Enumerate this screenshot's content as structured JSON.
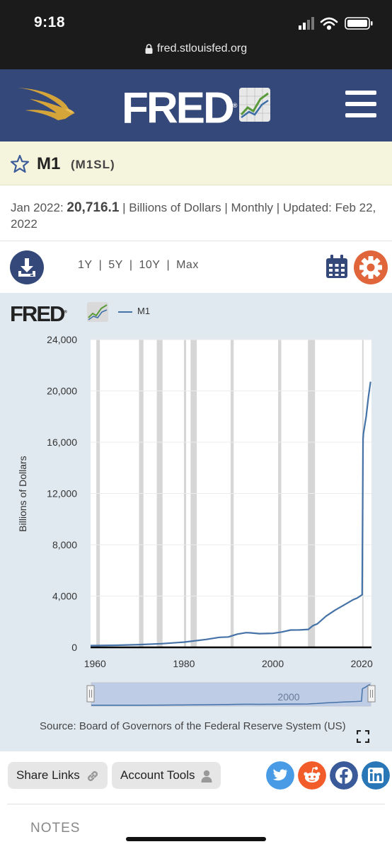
{
  "status": {
    "time": "9:18"
  },
  "browser": {
    "url": "fred.stlouisfed.org"
  },
  "header": {
    "brand": "FRED",
    "reg": "®"
  },
  "series": {
    "title": "M1",
    "id": "(M1SL)",
    "date_label": "Jan 2022:",
    "value": "20,716.1",
    "units": "| Billions of Dollars | Monthly | Updated:",
    "updated": "Feb 22, 2022"
  },
  "ranges": [
    "1Y",
    "5Y",
    "10Y",
    "Max"
  ],
  "graph": {
    "brand": "FRED",
    "reg": "®",
    "legend": "M1",
    "navigator_label": "2000",
    "source": "Source: Board of Governors of the Federal Reserve System (US)"
  },
  "bottom": {
    "share_label": "Share Links",
    "account_label": "Account Tools",
    "notes_label": "NOTES"
  },
  "colors": {
    "header_bg": "#34497a",
    "series_line": "#4572a7",
    "recession_bar": "#c8c8c8",
    "accent_orange": "#e1653a",
    "twitter": "#4a9be6",
    "reddit": "#f25c2b",
    "facebook": "#3b5a9a",
    "linkedin": "#2977b6"
  },
  "chart_data": {
    "type": "line",
    "ylabel": "Billions of Dollars",
    "xlabel": "",
    "ylim": [
      0,
      24000
    ],
    "xlim": [
      1959.0,
      2022.2
    ],
    "yticks": [
      0,
      4000,
      8000,
      12000,
      16000,
      20000,
      24000
    ],
    "ytick_labels": [
      "0",
      "4,000",
      "8,000",
      "12,000",
      "16,000",
      "20,000",
      "24,000"
    ],
    "xticks": [
      1960,
      1980,
      2000,
      2020
    ],
    "xtick_labels": [
      "1960",
      "1980",
      "2000",
      "2020"
    ],
    "recessions": [
      [
        1960.3,
        1961.1
      ],
      [
        1969.9,
        1970.9
      ],
      [
        1973.9,
        1975.2
      ],
      [
        1980.0,
        1980.5
      ],
      [
        1981.5,
        1982.9
      ],
      [
        1990.5,
        1991.2
      ],
      [
        2001.2,
        2001.9
      ],
      [
        2007.9,
        2009.5
      ],
      [
        2020.1,
        2020.3
      ]
    ],
    "series": [
      {
        "name": "M1",
        "x": [
          1959.0,
          1965,
          1970,
          1975,
          1980,
          1985,
          1988,
          1990,
          1992,
          1994,
          1995,
          1997,
          2000,
          2002,
          2004,
          2006,
          2008,
          2009,
          2010,
          2012,
          2014,
          2016,
          2018,
          2019,
          2020.1,
          2020.3,
          2020.4,
          2021.0,
          2021.5,
          2022.0
        ],
        "y": [
          139,
          167,
          215,
          288,
          408,
          620,
          786,
          811,
          1030,
          1150,
          1130,
          1070,
          1090,
          1200,
          1350,
          1360,
          1400,
          1690,
          1830,
          2440,
          2900,
          3300,
          3700,
          3850,
          4100,
          16250,
          16700,
          18000,
          19500,
          20716
        ]
      }
    ]
  }
}
